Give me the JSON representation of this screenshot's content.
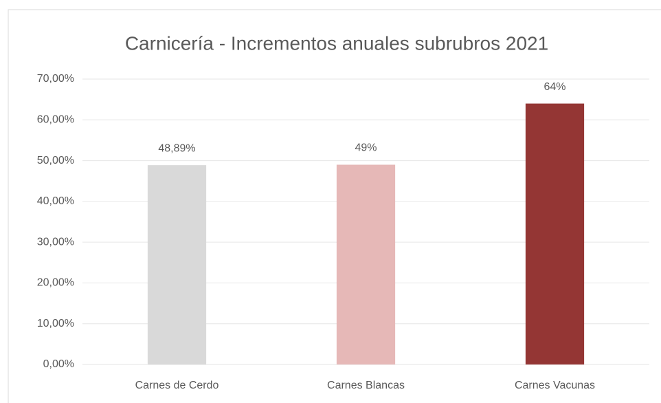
{
  "chart_data": {
    "type": "bar",
    "title": "Carnicería - Incrementos anuales subrubros 2021",
    "categories": [
      "Carnes de Cerdo",
      "Carnes Blancas",
      "Carnes Vacunas"
    ],
    "values": [
      48.89,
      49,
      64
    ],
    "value_labels": [
      "48,89%",
      "49%",
      "64%"
    ],
    "colors": [
      "#d9d9d9",
      "#e6b8b7",
      "#943634"
    ],
    "ylim": [
      0,
      70
    ],
    "yticks": [
      {
        "value": 0,
        "label": "0,00%"
      },
      {
        "value": 10,
        "label": "10,00%"
      },
      {
        "value": 20,
        "label": "20,00%"
      },
      {
        "value": 30,
        "label": "30,00%"
      },
      {
        "value": 40,
        "label": "40,00%"
      },
      {
        "value": 50,
        "label": "50,00%"
      },
      {
        "value": 60,
        "label": "60,00%"
      },
      {
        "value": 70,
        "label": "70,00%"
      }
    ],
    "grid": true
  }
}
